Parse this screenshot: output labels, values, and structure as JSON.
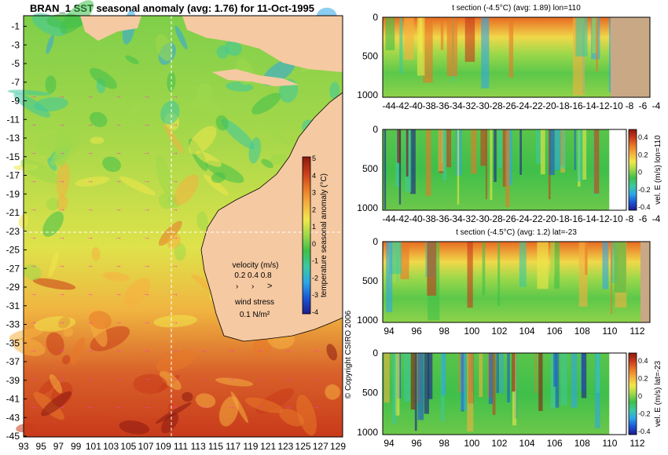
{
  "colors": {
    "land": "#f5c9a2",
    "land_section": "#c9a886",
    "scale": [
      "#1c1c8c",
      "#1a56d6",
      "#2ea6e6",
      "#3cc8a0",
      "#3fbf4a",
      "#9ed84a",
      "#f0e84a",
      "#f5b040",
      "#e87828",
      "#c83a1a",
      "#8c1a10"
    ],
    "arrow": "#ff33cc",
    "grid": "#ffffff"
  },
  "map": {
    "title": "BRAN_1  SST seasonal anomaly  (avg: 1.76)  for 11-Oct-1995",
    "lat_ticks": [
      "-1",
      "-3",
      "-5",
      "-7",
      "-9",
      "-11",
      "-13",
      "-15",
      "-17",
      "-19",
      "-21",
      "-23",
      "-25",
      "-27",
      "-29",
      "-31",
      "-33",
      "-35",
      "-37",
      "-39",
      "-41",
      "-43",
      "-45"
    ],
    "lon_ticks": [
      "93",
      "95",
      "97",
      "99",
      "101",
      "103",
      "105",
      "107",
      "109",
      "111",
      "113",
      "115",
      "117",
      "119",
      "121",
      "123",
      "125",
      "127",
      "129"
    ],
    "colorbar": {
      "label": "temperature seasonal anomaly (°C)",
      "ticks": [
        "5",
        "4",
        "3",
        "2",
        "1",
        "0",
        "-1",
        "-2",
        "-3",
        "-4"
      ]
    },
    "velocity_legend": {
      "title": "velocity (m/s)",
      "values": "0.2 0.4 0.8",
      "wind_title": "wind stress",
      "wind_value": "0.1 N/m²"
    },
    "copyright": "© Copyright CSIRO 2006"
  },
  "sections": [
    {
      "title": "t section (-4.5°C)  (avg: 1.89) lon=110",
      "y_ticks": [
        "0",
        "500",
        "1000"
      ],
      "x_ticks": [
        "-44",
        "-42",
        "-40",
        "-38",
        "-36",
        "-34",
        "-32",
        "-30",
        "-28",
        "-26",
        "-24",
        "-22",
        "-20",
        "-18",
        "-16",
        "-14",
        "-12",
        "-10",
        "-8",
        "-6",
        "-4"
      ],
      "colorbar": null
    },
    {
      "title": "",
      "y_ticks": [
        "0",
        "500",
        "1000"
      ],
      "x_ticks": [
        "-44",
        "-42",
        "-40",
        "-38",
        "-36",
        "-34",
        "-32",
        "-30",
        "-28",
        "-26",
        "-24",
        "-22",
        "-20",
        "-18",
        "-16",
        "-14",
        "-12",
        "-10",
        "-8",
        "-6",
        "-4"
      ],
      "colorbar": {
        "label": "vel. E (m/s) lon=110",
        "ticks": [
          "0.4",
          "0.2",
          "0",
          "-0.2",
          "-0.4"
        ]
      }
    },
    {
      "title": "t section (-4.5°C)  (avg: 1.2) lat=-23",
      "y_ticks": [
        "0",
        "500",
        "1000"
      ],
      "x_ticks": [
        "94",
        "96",
        "98",
        "100",
        "102",
        "104",
        "106",
        "108",
        "110",
        "112"
      ],
      "colorbar": null
    },
    {
      "title": "",
      "y_ticks": [
        "0",
        "500",
        "1000"
      ],
      "x_ticks": [
        "94",
        "96",
        "98",
        "100",
        "102",
        "104",
        "106",
        "108",
        "110",
        "112"
      ],
      "colorbar": {
        "label": "vel. E (m/s) lat=-23",
        "ticks": [
          "0.4",
          "0.2",
          "0",
          "-0.2",
          "-0.4"
        ]
      }
    }
  ]
}
